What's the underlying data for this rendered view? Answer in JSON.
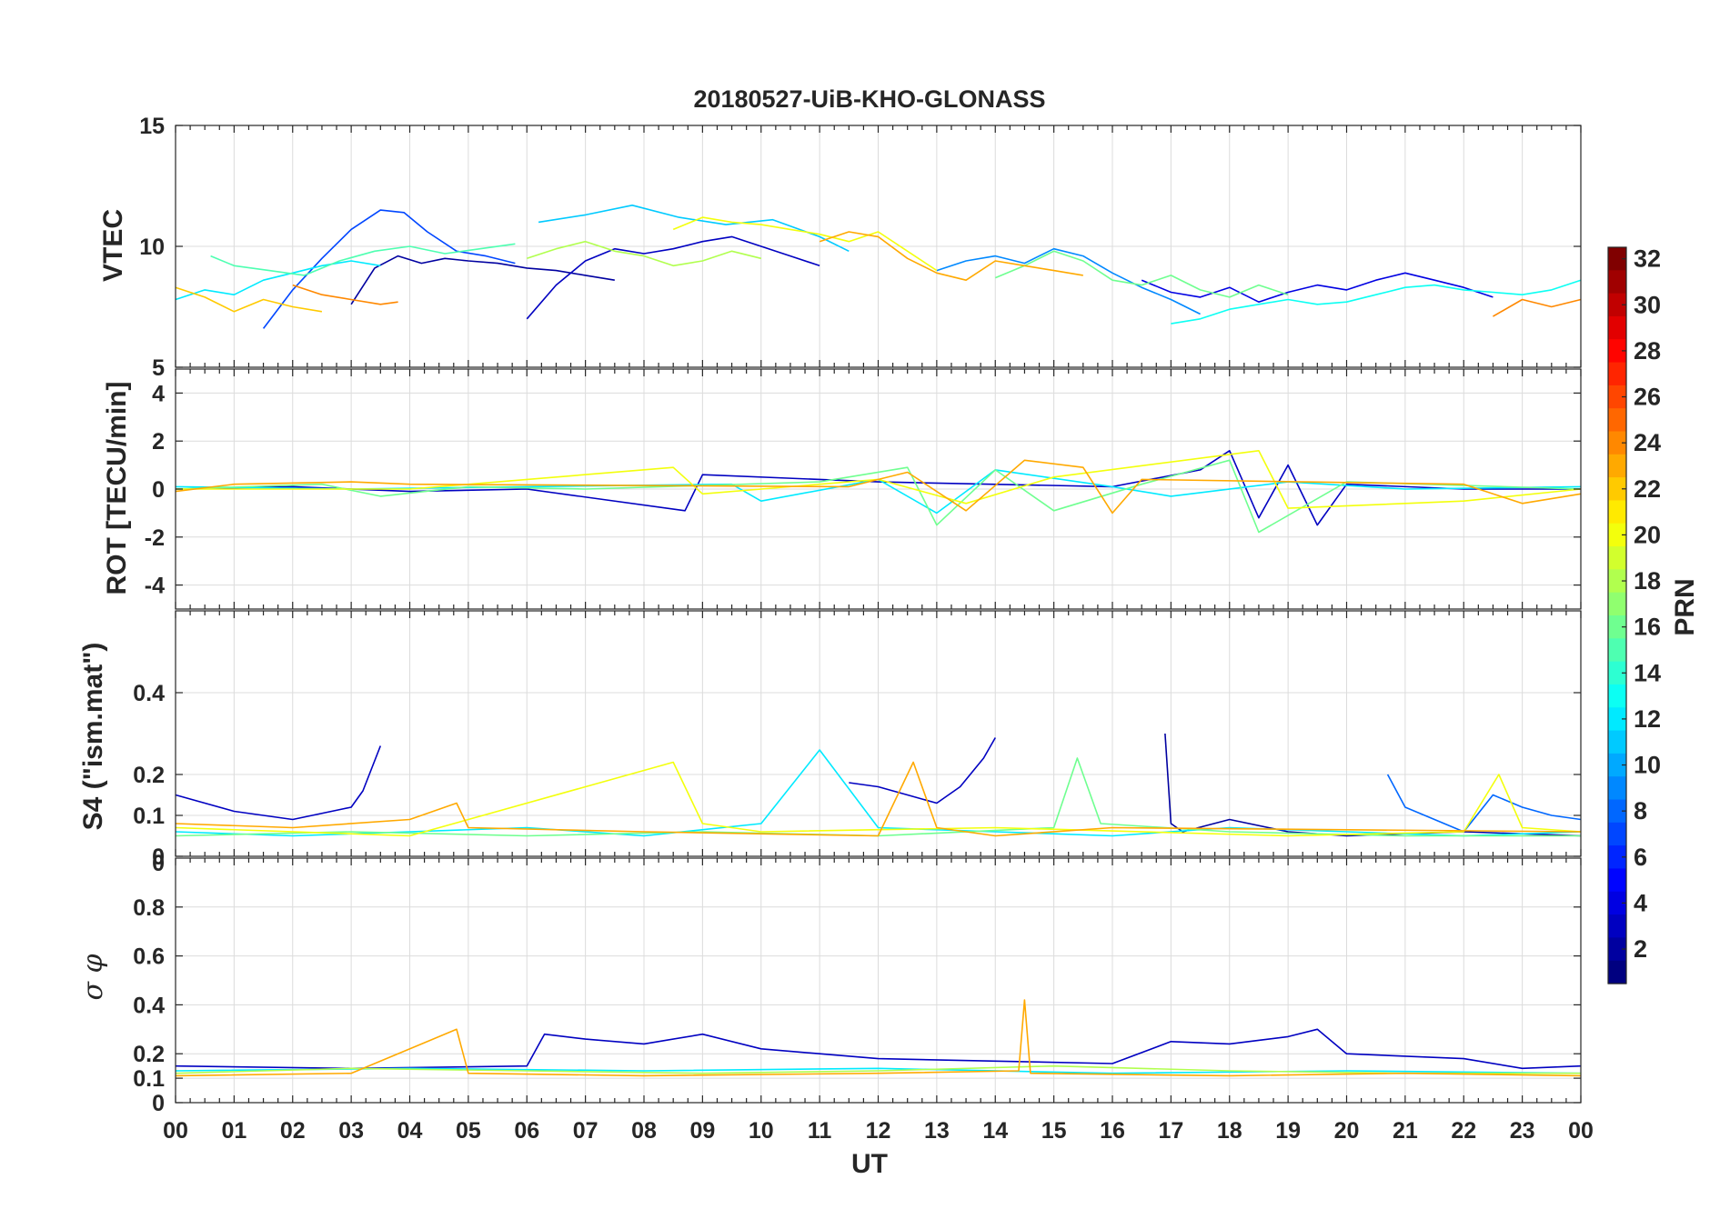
{
  "chart_data": {
    "type": "line",
    "title": "20180527-UiB-KHO-GLONASS",
    "xlabel": "UT",
    "x_ticks": [
      "00",
      "01",
      "02",
      "03",
      "04",
      "05",
      "06",
      "07",
      "08",
      "09",
      "10",
      "11",
      "12",
      "13",
      "14",
      "15",
      "16",
      "17",
      "18",
      "19",
      "20",
      "21",
      "22",
      "23",
      "00"
    ],
    "xlim": [
      0,
      24
    ],
    "grid": true,
    "panels": [
      {
        "ylabel": "VTEC",
        "ylim": [
          5,
          15
        ],
        "yticks": [
          5,
          10,
          15
        ],
        "ytick_labels": [
          "5",
          "10",
          "15"
        ],
        "series": [
          {
            "prn": 2,
            "x": [
              3.0,
              3.4,
              3.8,
              4.2,
              4.6,
              5.0,
              5.5,
              6.0,
              6.5,
              7.0,
              7.5
            ],
            "y": [
              7.6,
              9.1,
              9.6,
              9.3,
              9.5,
              9.4,
              9.3,
              9.1,
              9.0,
              8.8,
              8.6
            ]
          },
          {
            "prn": 3,
            "x": [
              6.0,
              6.5,
              7.0,
              7.5,
              8.0,
              8.5,
              9.0,
              9.5,
              10.0,
              10.5,
              11.0
            ],
            "y": [
              7.0,
              8.4,
              9.4,
              9.9,
              9.7,
              9.9,
              10.2,
              10.4,
              10.0,
              9.6,
              9.2
            ]
          },
          {
            "prn": 4,
            "x": [
              16.5,
              17.0,
              17.5,
              18.0,
              18.5,
              19.0,
              19.5,
              20.0,
              20.5,
              21.0,
              21.5,
              22.0,
              22.5
            ],
            "y": [
              8.6,
              8.1,
              7.9,
              8.3,
              7.7,
              8.1,
              8.4,
              8.2,
              8.6,
              8.9,
              8.6,
              8.3,
              7.9
            ]
          },
          {
            "prn": 7,
            "x": [
              1.5,
              2.0,
              2.5,
              3.0,
              3.5,
              3.9,
              4.3,
              4.8,
              5.3,
              5.8
            ],
            "y": [
              6.6,
              8.2,
              9.5,
              10.7,
              11.5,
              11.4,
              10.6,
              9.8,
              9.6,
              9.3
            ]
          },
          {
            "prn": 9,
            "x": [
              13.0,
              13.5,
              14.0,
              14.5,
              15.0,
              15.5,
              16.0,
              16.5,
              17.0,
              17.5
            ],
            "y": [
              9.0,
              9.4,
              9.6,
              9.3,
              9.9,
              9.6,
              8.9,
              8.3,
              7.8,
              7.2
            ]
          },
          {
            "prn": 11,
            "x": [
              6.2,
              7.0,
              7.8,
              8.6,
              9.4,
              10.2,
              11.0,
              11.5
            ],
            "y": [
              11.0,
              11.3,
              11.7,
              11.2,
              10.9,
              11.1,
              10.4,
              9.8
            ]
          },
          {
            "prn": 12,
            "x": [
              0.0,
              0.5,
              1.0,
              1.5,
              2.0,
              2.5,
              3.0,
              3.5
            ],
            "y": [
              7.8,
              8.2,
              8.0,
              8.6,
              8.9,
              9.2,
              9.4,
              9.2
            ]
          },
          {
            "prn": 13,
            "x": [
              17.0,
              17.5,
              18.0,
              18.5,
              19.0,
              19.5,
              20.0,
              20.5,
              21.0,
              21.5,
              22.0,
              22.5,
              23.0,
              23.5,
              24.0
            ],
            "y": [
              6.8,
              7.0,
              7.4,
              7.6,
              7.8,
              7.6,
              7.7,
              8.0,
              8.3,
              8.4,
              8.2,
              8.1,
              8.0,
              8.2,
              8.6
            ]
          },
          {
            "prn": 15,
            "x": [
              0.6,
              1.0,
              1.6,
              2.2,
              2.8,
              3.4,
              4.0,
              4.6,
              5.2,
              5.8
            ],
            "y": [
              9.6,
              9.2,
              9.0,
              8.8,
              9.4,
              9.8,
              10.0,
              9.7,
              9.9,
              10.1
            ]
          },
          {
            "prn": 16,
            "x": [
              14.0,
              14.5,
              15.0,
              15.5,
              16.0,
              16.5,
              17.0,
              17.5,
              18.0,
              18.5,
              19.0
            ],
            "y": [
              8.7,
              9.2,
              9.8,
              9.4,
              8.6,
              8.4,
              8.8,
              8.2,
              7.9,
              8.4,
              8.0
            ]
          },
          {
            "prn": 18,
            "x": [
              6.0,
              6.5,
              7.0,
              7.5,
              8.0,
              8.5,
              9.0,
              9.5,
              10.0
            ],
            "y": [
              9.5,
              9.9,
              10.2,
              9.8,
              9.6,
              9.2,
              9.4,
              9.8,
              9.5
            ]
          },
          {
            "prn": 20,
            "x": [
              8.5,
              9.0,
              9.5,
              10.0,
              10.5,
              11.0,
              11.5,
              12.0,
              12.5,
              13.0
            ],
            "y": [
              10.7,
              11.2,
              11.0,
              10.9,
              10.7,
              10.5,
              10.2,
              10.6,
              9.8,
              9.0
            ]
          },
          {
            "prn": 22,
            "x": [
              0.0,
              0.5,
              1.0,
              1.5,
              2.0,
              2.5
            ],
            "y": [
              8.3,
              7.9,
              7.3,
              7.8,
              7.5,
              7.3
            ]
          },
          {
            "prn": 23,
            "x": [
              11.0,
              11.5,
              12.0,
              12.5,
              13.0,
              13.5,
              14.0,
              14.5,
              15.0,
              15.5
            ],
            "y": [
              10.2,
              10.6,
              10.4,
              9.5,
              8.9,
              8.6,
              9.4,
              9.2,
              9.0,
              8.8
            ]
          },
          {
            "prn": 24,
            "x": [
              2.0,
              2.5,
              3.0,
              3.5,
              3.8
            ],
            "y": [
              8.4,
              8.0,
              7.8,
              7.6,
              7.7
            ]
          },
          {
            "prn": 24,
            "x": [
              22.5,
              23.0,
              23.5,
              24.0
            ],
            "y": [
              7.1,
              7.8,
              7.5,
              7.8
            ]
          }
        ]
      },
      {
        "ylabel": "ROT [TECU/min]",
        "ylim": [
          -5,
          5
        ],
        "yticks": [
          -4,
          -2,
          0,
          2,
          4
        ],
        "ytick_labels": [
          "-4",
          "-2",
          "0",
          "2",
          "4"
        ],
        "series": [
          {
            "prn": 3,
            "x": [
              0.0,
              2.0,
              4.0,
              6.0,
              8.7,
              9.0,
              12.0,
              16.0,
              17.5,
              18.0,
              18.5,
              19.0,
              19.5,
              20.0,
              22.0,
              24.0
            ],
            "y": [
              0.0,
              0.1,
              -0.1,
              0.0,
              -0.9,
              0.6,
              0.3,
              0.1,
              0.8,
              1.6,
              -1.2,
              1.0,
              -1.5,
              0.2,
              0.0,
              0.0
            ]
          },
          {
            "prn": 12,
            "x": [
              0.0,
              3.0,
              6.0,
              9.5,
              10.0,
              12.0,
              13.0,
              14.0,
              16.0,
              17.0,
              19.0,
              21.0,
              24.0
            ],
            "y": [
              0.1,
              0.0,
              0.1,
              0.2,
              -0.5,
              0.4,
              -1.0,
              0.8,
              0.1,
              -0.3,
              0.3,
              0.0,
              0.1
            ]
          },
          {
            "prn": 16,
            "x": [
              0.0,
              2.5,
              3.5,
              5.0,
              7.0,
              11.0,
              12.5,
              13.0,
              14.0,
              15.0,
              16.5,
              18.0,
              18.5,
              20.0,
              24.0
            ],
            "y": [
              0.0,
              0.2,
              -0.3,
              0.1,
              0.0,
              0.3,
              0.9,
              -1.5,
              0.8,
              -0.9,
              0.2,
              1.2,
              -1.8,
              0.3,
              0.0
            ]
          },
          {
            "prn": 20,
            "x": [
              0.0,
              4.0,
              8.5,
              9.0,
              12.0,
              13.5,
              15.0,
              18.5,
              19.0,
              22.0,
              24.0
            ],
            "y": [
              0.0,
              0.0,
              0.9,
              -0.2,
              0.4,
              -0.6,
              0.5,
              1.6,
              -0.8,
              -0.5,
              0.0
            ]
          },
          {
            "prn": 23,
            "x": [
              0.0,
              1.0,
              3.0,
              4.0,
              11.5,
              12.5,
              13.5,
              14.5,
              15.5,
              16.0,
              16.5,
              22.0,
              23.0,
              24.0
            ],
            "y": [
              -0.1,
              0.2,
              0.3,
              0.2,
              0.1,
              0.7,
              -0.9,
              1.2,
              0.9,
              -1.0,
              0.4,
              0.2,
              -0.6,
              -0.2
            ]
          }
        ]
      },
      {
        "ylabel": "S4 (\"ism.mat\")",
        "ylim": [
          0,
          0.6
        ],
        "yticks": [
          0,
          0.1,
          0.2,
          0.4
        ],
        "ytick_labels": [
          "0",
          "0.1",
          "0.2",
          "0.4"
        ],
        "extra_tick_label": "0",
        "series": [
          {
            "prn": 3,
            "x": [
              0.0,
              1.0,
              2.0,
              3.0,
              3.2,
              3.5
            ],
            "y": [
              0.15,
              0.11,
              0.09,
              0.12,
              0.16,
              0.27
            ]
          },
          {
            "prn": 3,
            "x": [
              11.5,
              12.0,
              12.5,
              13.0,
              13.4,
              13.8,
              14.0
            ],
            "y": [
              0.18,
              0.17,
              0.15,
              0.13,
              0.17,
              0.24,
              0.29
            ]
          },
          {
            "prn": 2,
            "x": [
              16.9,
              17.0,
              17.2,
              18.0,
              19.0,
              20.0,
              22.0,
              24.0
            ],
            "y": [
              0.3,
              0.08,
              0.06,
              0.09,
              0.06,
              0.05,
              0.06,
              0.05
            ]
          },
          {
            "prn": 8,
            "x": [
              20.7,
              21.0,
              21.5,
              22.0,
              22.5,
              23.0,
              23.5,
              24.0
            ],
            "y": [
              0.2,
              0.12,
              0.09,
              0.06,
              0.15,
              0.12,
              0.1,
              0.09
            ]
          },
          {
            "prn": 12,
            "x": [
              0.0,
              2.0,
              4.0,
              6.0,
              8.0,
              10.0,
              11.0,
              12.0,
              14.0,
              16.0,
              18.0,
              20.0,
              22.0,
              24.0
            ],
            "y": [
              0.06,
              0.05,
              0.06,
              0.07,
              0.05,
              0.08,
              0.26,
              0.07,
              0.06,
              0.05,
              0.07,
              0.06,
              0.05,
              0.06
            ]
          },
          {
            "prn": 16,
            "x": [
              0.0,
              3.0,
              6.0,
              9.0,
              12.0,
              15.0,
              15.4,
              15.8,
              18.0,
              21.0,
              24.0
            ],
            "y": [
              0.05,
              0.06,
              0.05,
              0.06,
              0.05,
              0.07,
              0.24,
              0.08,
              0.06,
              0.05,
              0.05
            ]
          },
          {
            "prn": 20,
            "x": [
              0.0,
              4.0,
              8.5,
              9.0,
              10.0,
              14.0,
              19.0,
              22.0,
              22.6,
              23.0,
              24.0
            ],
            "y": [
              0.07,
              0.05,
              0.23,
              0.08,
              0.06,
              0.07,
              0.05,
              0.06,
              0.2,
              0.07,
              0.06
            ]
          },
          {
            "prn": 23,
            "x": [
              0.0,
              2.0,
              4.0,
              4.8,
              5.0,
              8.0,
              12.0,
              12.6,
              13.0,
              14.0,
              16.0,
              24.0
            ],
            "y": [
              0.08,
              0.07,
              0.09,
              0.13,
              0.07,
              0.06,
              0.05,
              0.23,
              0.07,
              0.05,
              0.07,
              0.06
            ]
          }
        ]
      },
      {
        "ylabel": "σ φ",
        "ylim": [
          0,
          1
        ],
        "yticks": [
          0,
          0.1,
          0.2,
          0.4,
          0.6,
          0.8
        ],
        "ytick_labels": [
          "0",
          "0.1",
          "0.2",
          "0.4",
          "0.6",
          "0.8"
        ],
        "series": [
          {
            "prn": 3,
            "x": [
              0.0,
              3.0,
              6.0,
              6.3,
              7.0,
              8.0,
              9.0,
              10.0,
              11.0,
              12.0,
              14.0,
              16.0,
              17.0,
              18.0,
              19.0,
              19.5,
              20.0,
              22.0,
              23.0,
              24.0
            ],
            "y": [
              0.15,
              0.14,
              0.15,
              0.28,
              0.26,
              0.24,
              0.28,
              0.22,
              0.2,
              0.18,
              0.17,
              0.16,
              0.25,
              0.24,
              0.27,
              0.3,
              0.2,
              0.18,
              0.14,
              0.15
            ]
          },
          {
            "prn": 12,
            "x": [
              0.0,
              4.0,
              8.0,
              12.0,
              16.0,
              20.0,
              24.0
            ],
            "y": [
              0.13,
              0.14,
              0.13,
              0.14,
              0.12,
              0.13,
              0.12
            ]
          },
          {
            "prn": 18,
            "x": [
              0.0,
              3.0,
              6.0,
              9.0,
              12.0,
              15.0,
              18.0,
              21.0,
              24.0
            ],
            "y": [
              0.12,
              0.14,
              0.13,
              0.12,
              0.13,
              0.15,
              0.13,
              0.12,
              0.12
            ]
          },
          {
            "prn": 23,
            "x": [
              0.0,
              3.0,
              4.8,
              5.0,
              8.0,
              12.0,
              14.4,
              14.5,
              14.6,
              18.0,
              21.0,
              24.0
            ],
            "y": [
              0.11,
              0.12,
              0.3,
              0.12,
              0.11,
              0.12,
              0.13,
              0.42,
              0.12,
              0.11,
              0.12,
              0.11
            ]
          }
        ]
      }
    ],
    "colorbar": {
      "label": "PRN",
      "range": [
        1,
        32
      ],
      "tick_labels": [
        "2",
        "4",
        "6",
        "8",
        "10",
        "12",
        "14",
        "16",
        "18",
        "20",
        "22",
        "24",
        "26",
        "28",
        "30",
        "32"
      ],
      "colormap": "jet"
    }
  }
}
